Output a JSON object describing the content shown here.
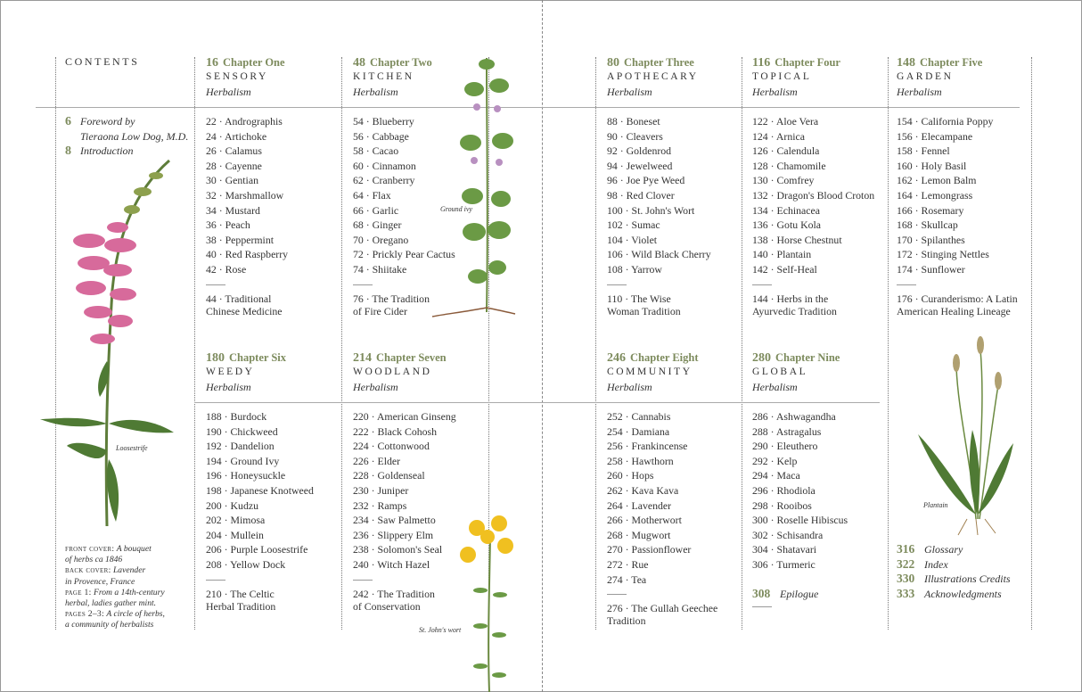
{
  "contents_label": "CONTENTS",
  "front_matter": [
    {
      "page": "6",
      "lines": [
        "Foreword by",
        "Tieraona Low Dog, M.D."
      ]
    },
    {
      "page": "8",
      "lines": [
        "Introduction"
      ]
    }
  ],
  "captions": [
    {
      "label": "FRONT COVER:",
      "text": "A bouquet",
      "text2": "of herbs ca 1846"
    },
    {
      "label": "BACK COVER:",
      "text": "Lavender",
      "text2": "in Provence, France"
    },
    {
      "label": "PAGE 1:",
      "text": "From a 14th-century",
      "text2": "herbal, ladies gather mint."
    },
    {
      "label": "PAGES 2–3:",
      "text": "A circle of herbs,",
      "text2": "a community of herbalists"
    }
  ],
  "plant_labels": {
    "loosestrife": "Loosestrife",
    "ground_ivy": "Ground ivy",
    "st_johns_wort": "St. John's wort",
    "plantain": "Plantain"
  },
  "colors": {
    "accent": "#7d8b5d",
    "text": "#333333"
  },
  "chapters": [
    {
      "page": "16",
      "label": "Chapter One",
      "title": "SENSORY",
      "subtitle": "Herbalism",
      "items": [
        "22 · Andrographis",
        "24 · Artichoke",
        "26 · Calamus",
        "28 · Cayenne",
        "30 · Gentian",
        "32 · Marshmallow",
        "34 · Mustard",
        "36 · Peach",
        "38 · Peppermint",
        "40 · Red Raspberry",
        "42 · Rose"
      ],
      "tradition": [
        "44 · Traditional",
        "Chinese Medicine"
      ]
    },
    {
      "page": "48",
      "label": "Chapter Two",
      "title": "KITCHEN",
      "subtitle": "Herbalism",
      "items": [
        "54 · Blueberry",
        "56 · Cabbage",
        "58 · Cacao",
        "60 · Cinnamon",
        "62 · Cranberry",
        "64 · Flax",
        "66 · Garlic",
        "68 · Ginger",
        "70 · Oregano",
        "72 · Prickly Pear Cactus",
        "74 · Shiitake"
      ],
      "tradition": [
        "76 · The Tradition",
        "of Fire Cider"
      ]
    },
    {
      "page": "80",
      "label": "Chapter Three",
      "title": "APOTHECARY",
      "subtitle": "Herbalism",
      "items": [
        "88 · Boneset",
        "90 · Cleavers",
        "92 · Goldenrod",
        "94 · Jewelweed",
        "96 · Joe Pye Weed",
        "98 · Red Clover",
        "100 · St. John's Wort",
        "102 · Sumac",
        "104 · Violet",
        "106 · Wild Black Cherry",
        "108 · Yarrow"
      ],
      "tradition": [
        "110 · The Wise",
        "Woman Tradition"
      ]
    },
    {
      "page": "116",
      "label": "Chapter Four",
      "title": "TOPICAL",
      "subtitle": "Herbalism",
      "items": [
        "122 · Aloe Vera",
        "124 · Arnica",
        "126 · Calendula",
        "128 · Chamomile",
        "130 · Comfrey",
        "132 · Dragon's Blood Croton",
        "134 · Echinacea",
        "136 · Gotu Kola",
        "138 · Horse Chestnut",
        "140 · Plantain",
        "142 · Self-Heal"
      ],
      "tradition": [
        "144 · Herbs in the",
        "Ayurvedic Tradition"
      ]
    },
    {
      "page": "148",
      "label": "Chapter Five",
      "title": "GARDEN",
      "subtitle": "Herbalism",
      "items": [
        "154 · California Poppy",
        "156 · Elecampane",
        "158 · Fennel",
        "160 · Holy Basil",
        "162 · Lemon Balm",
        "164 · Lemongrass",
        "166 · Rosemary",
        "168 · Skullcap",
        "170 · Spilanthes",
        "172 · Stinging Nettles",
        "174 · Sunflower"
      ],
      "tradition": [
        "176 · Curanderismo: A Latin",
        "American Healing Lineage"
      ]
    },
    {
      "page": "180",
      "label": "Chapter Six",
      "title": "WEEDY",
      "subtitle": "Herbalism",
      "items": [
        "188 · Burdock",
        "190 · Chickweed",
        "192 · Dandelion",
        "194 · Ground Ivy",
        "196 · Honeysuckle",
        "198 · Japanese Knotweed",
        "200 · Kudzu",
        "202 · Mimosa",
        "204 · Mullein",
        "206 · Purple Loosestrife",
        "208 · Yellow Dock"
      ],
      "tradition": [
        "210 · The Celtic",
        "Herbal Tradition"
      ]
    },
    {
      "page": "214",
      "label": "Chapter Seven",
      "title": "WOODLAND",
      "subtitle": "Herbalism",
      "items": [
        "220 · American Ginseng",
        "222 · Black Cohosh",
        "224 · Cottonwood",
        "226 · Elder",
        "228 · Goldenseal",
        "230 · Juniper",
        "232 · Ramps",
        "234 · Saw Palmetto",
        "236 · Slippery Elm",
        "238 · Solomon's Seal",
        "240 · Witch Hazel"
      ],
      "tradition": [
        "242 · The Tradition",
        "of Conservation"
      ]
    },
    {
      "page": "246",
      "label": "Chapter Eight",
      "title": "COMMUNITY",
      "subtitle": "Herbalism",
      "items": [
        "252 · Cannabis",
        "254 · Damiana",
        "256 · Frankincense",
        "258 · Hawthorn",
        "260 · Hops",
        "262 · Kava Kava",
        "264 · Lavender",
        "266 · Motherwort",
        "268 · Mugwort",
        "270 · Passionflower",
        "272 · Rue",
        "274 · Tea"
      ],
      "tradition": [
        "276 · The Gullah Geechee",
        "Tradition"
      ]
    },
    {
      "page": "280",
      "label": "Chapter Nine",
      "title": "GLOBAL",
      "subtitle": "Herbalism",
      "items": [
        "286 · Ashwagandha",
        "288 · Astragalus",
        "290 · Eleuthero",
        "292 · Kelp",
        "294 · Maca",
        "296 · Rhodiola",
        "298 · Rooibos",
        "300 · Roselle Hibiscus",
        "302 · Schisandra",
        "304 · Shatavari",
        "306 · Turmeric"
      ],
      "tradition": null
    }
  ],
  "epilogue": {
    "page": "308",
    "label": "Epilogue"
  },
  "back_matter": [
    {
      "page": "316",
      "label": "Glossary"
    },
    {
      "page": "322",
      "label": "Index"
    },
    {
      "page": "330",
      "label": "Illustrations Credits"
    },
    {
      "page": "333",
      "label": "Acknowledgments"
    }
  ]
}
